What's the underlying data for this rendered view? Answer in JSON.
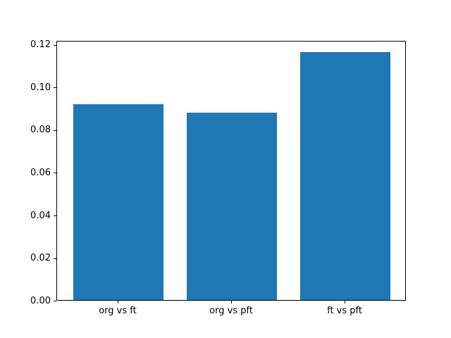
{
  "chart_data": {
    "type": "bar",
    "categories": [
      "org vs ft",
      "org vs pft",
      "ft vs pft"
    ],
    "values": [
      0.0918,
      0.0878,
      0.1162
    ],
    "title": "",
    "xlabel": "",
    "ylabel": "",
    "ylim": [
      0,
      0.122
    ],
    "ytick_labels": [
      "0.00",
      "0.02",
      "0.04",
      "0.06",
      "0.08",
      "0.10",
      "0.12"
    ],
    "bar_color": "#1f77b4",
    "spine_color": "#000000",
    "grid": false,
    "legend_position": "none",
    "bar_width_fraction": 0.8
  }
}
